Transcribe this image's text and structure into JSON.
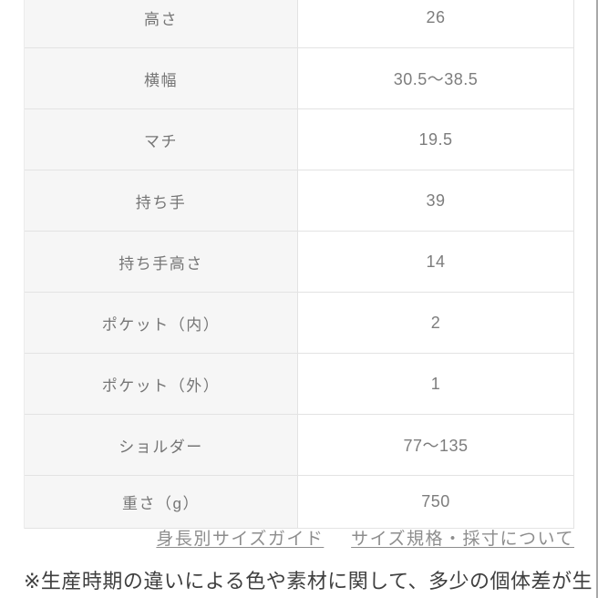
{
  "size_table": {
    "rows": [
      {
        "label": "高さ",
        "value": "26"
      },
      {
        "label": "横幅",
        "value": "30.5〜38.5"
      },
      {
        "label": "マチ",
        "value": "19.5"
      },
      {
        "label": "持ち手",
        "value": "39"
      },
      {
        "label": "持ち手高さ",
        "value": "14"
      },
      {
        "label": "ポケット（内）",
        "value": "2"
      },
      {
        "label": "ポケット（外）",
        "value": "1"
      },
      {
        "label": "ショルダー",
        "value": "77〜135"
      },
      {
        "label": "重さ（g）",
        "value": "750"
      }
    ]
  },
  "links": {
    "size_guide_label": "身長別サイズガイド",
    "sizing_info_label": "サイズ規格・採寸について"
  },
  "note": {
    "text": "※生産時期の違いによる色や素材に関して、多少の個体差が生"
  },
  "colors": {
    "label_bg": "#f6f6f6",
    "border": "#e3e3e3",
    "cell_text": "#7a7a7a",
    "link_text": "#8d8d8d",
    "note_text": "#3f3f3f",
    "page_edge": "#a9a9a9"
  }
}
